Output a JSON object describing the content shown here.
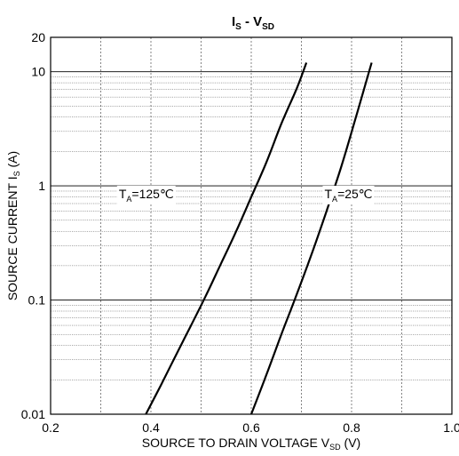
{
  "chart_data": {
    "type": "line",
    "title": {
      "main": "I",
      "main_sub": "S",
      "sep": " - V",
      "sep_sub": "SD"
    },
    "xlabel": {
      "main": "SOURCE TO DRAIN VOLTAGE V",
      "sub": "SD",
      "tail": " (V)"
    },
    "ylabel": {
      "main": "SOURCE CURRENT I",
      "sub": "S",
      "tail": " (A)"
    },
    "xlim": [
      0.2,
      1.0
    ],
    "ylim": [
      0.01,
      20
    ],
    "yscale": "log",
    "x_ticks": [
      0.2,
      0.4,
      0.6,
      0.8,
      1.0
    ],
    "x_tick_labels": [
      "0.2",
      "0.4",
      "0.6",
      "0.8",
      "1.0"
    ],
    "y_ticks": [
      0.01,
      0.1,
      1,
      10,
      20
    ],
    "y_tick_labels": [
      "0.01",
      "0.1",
      "1",
      "10",
      "20"
    ],
    "grid": true,
    "series": [
      {
        "label_main": "T",
        "label_sub": "A",
        "label_tail": "=125℃",
        "color": "#000000",
        "x": [
          0.39,
          0.42,
          0.45,
          0.48,
          0.51,
          0.54,
          0.57,
          0.6,
          0.63,
          0.66,
          0.69,
          0.71
        ],
        "y": [
          0.01,
          0.018,
          0.033,
          0.06,
          0.11,
          0.21,
          0.4,
          0.8,
          1.6,
          3.5,
          7.0,
          12.0
        ]
      },
      {
        "label_main": "T",
        "label_sub": "A",
        "label_tail": "=25℃",
        "color": "#000000",
        "x": [
          0.6,
          0.63,
          0.66,
          0.69,
          0.72,
          0.75,
          0.78,
          0.81,
          0.84
        ],
        "y": [
          0.01,
          0.022,
          0.05,
          0.11,
          0.25,
          0.6,
          1.5,
          4.2,
          12.0
        ]
      }
    ]
  }
}
